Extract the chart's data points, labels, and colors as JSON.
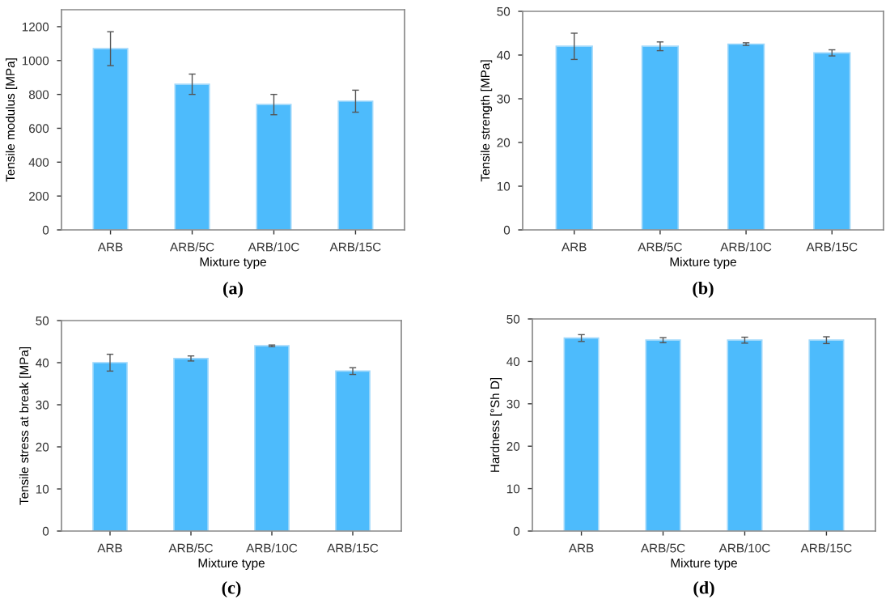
{
  "chart_data": [
    {
      "type": "bar",
      "categories": [
        "ARB",
        "ARB/5C",
        "ARB/10C",
        "ARB/15C"
      ],
      "values": [
        1070,
        860,
        740,
        760
      ],
      "errors": [
        100,
        60,
        60,
        65
      ],
      "color": "#4dbbfc",
      "xlabel": "Mixture type",
      "ylabel": "Tensile modulus [MPa]",
      "ylim": [
        0,
        1300
      ],
      "yticks": [
        0,
        200,
        400,
        600,
        800,
        1000,
        1200
      ],
      "grid": false,
      "annotations": [
        "(a)"
      ]
    },
    {
      "type": "bar",
      "categories": [
        "ARB",
        "ARB/5C",
        "ARB/10C",
        "ARB/15C"
      ],
      "values": [
        42,
        42,
        42.5,
        40.5
      ],
      "errors": [
        3,
        1,
        0.3,
        0.7
      ],
      "color": "#4dbbfc",
      "xlabel": "Mixture type",
      "ylabel": "Tensile strength [MPa]",
      "ylim": [
        0,
        50
      ],
      "yticks": [
        0,
        10,
        20,
        30,
        40,
        50
      ],
      "grid": false,
      "annotations": [
        "(b)"
      ]
    },
    {
      "type": "bar",
      "categories": [
        "ARB",
        "ARB/5C",
        "ARB/10C",
        "ARB/15C"
      ],
      "values": [
        40,
        41,
        44,
        38
      ],
      "errors": [
        2,
        0.6,
        0.2,
        0.8
      ],
      "color": "#4dbbfc",
      "xlabel": "Mixture type",
      "ylabel": "Tensile stress at break [MPa]",
      "ylim": [
        0,
        50
      ],
      "yticks": [
        0,
        10,
        20,
        30,
        40,
        50
      ],
      "grid": false,
      "annotations": [
        "(c)"
      ]
    },
    {
      "type": "bar",
      "categories": [
        "ARB",
        "ARB/5C",
        "ARB/10C",
        "ARB/15C"
      ],
      "values": [
        45.5,
        45,
        45,
        45
      ],
      "errors": [
        0.8,
        0.6,
        0.7,
        0.8
      ],
      "color": "#4dbbfc",
      "xlabel": "Mixture type",
      "ylabel": "Hardness [°Sh D]",
      "ylim": [
        0,
        50
      ],
      "yticks": [
        0,
        10,
        20,
        30,
        40,
        50
      ],
      "grid": false,
      "annotations": [
        "(d)"
      ]
    }
  ]
}
